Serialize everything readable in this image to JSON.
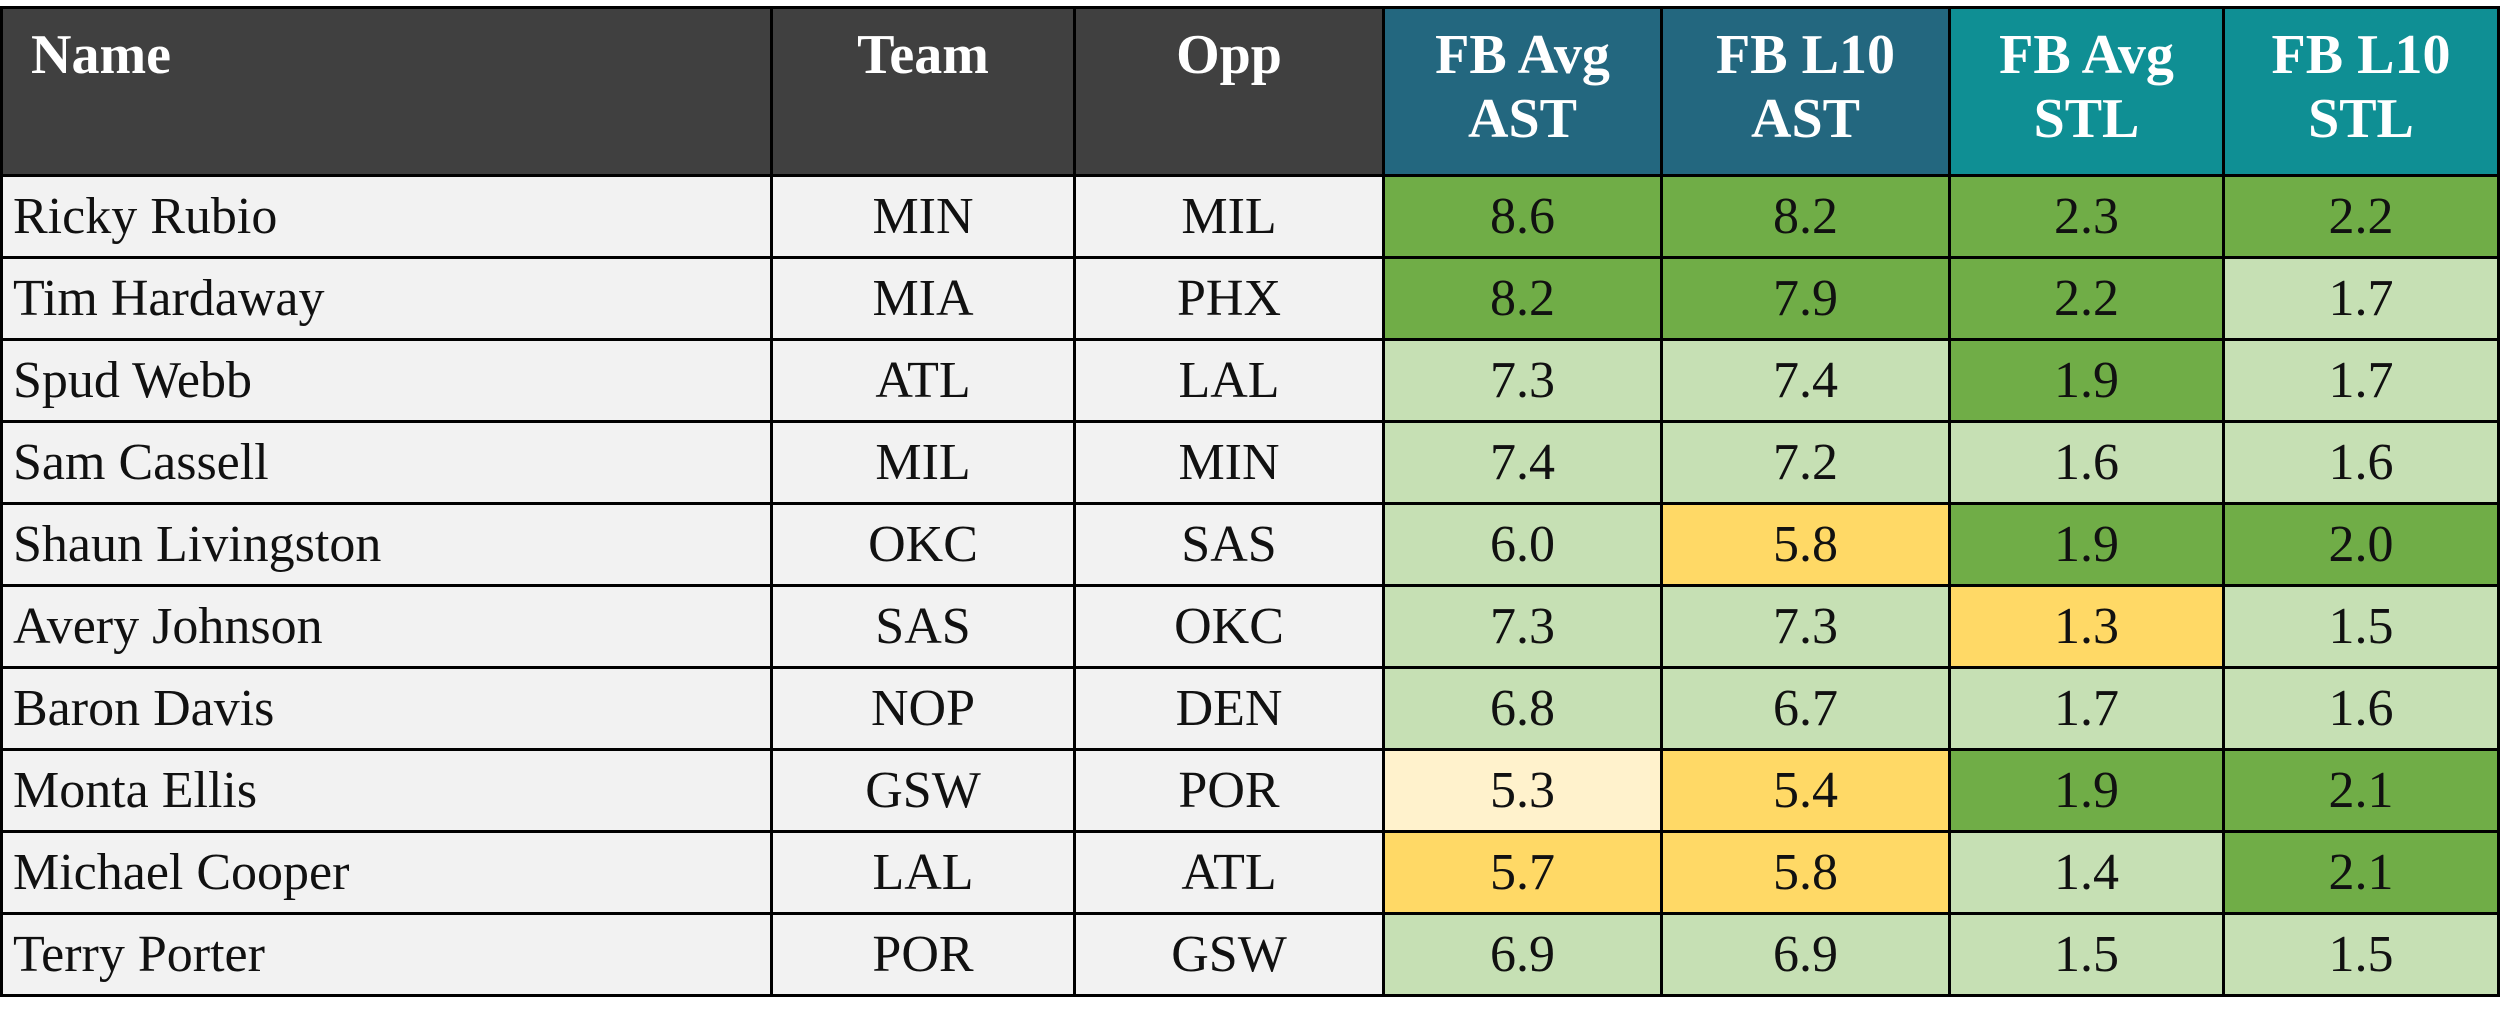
{
  "table": {
    "header": [
      "Name",
      "Team",
      "Opp",
      "FB Avg\nAST",
      "FB L10\nAST",
      "FB Avg\nSTL",
      "FB L10\nSTL"
    ],
    "header_fills": [
      "#404040",
      "#404040",
      "#404040",
      "#23677f",
      "#23677f",
      "#0f8f94",
      "#0f8f94"
    ],
    "rows": [
      [
        "Ricky Rubio",
        "MIN",
        "MIL",
        "8.6",
        "8.2",
        "2.3",
        "2.2"
      ],
      [
        "Tim Hardaway",
        "MIA",
        "PHX",
        "8.2",
        "7.9",
        "2.2",
        "1.7"
      ],
      [
        "Spud Webb",
        "ATL",
        "LAL",
        "7.3",
        "7.4",
        "1.9",
        "1.7"
      ],
      [
        "Sam Cassell",
        "MIL",
        "MIN",
        "7.4",
        "7.2",
        "1.6",
        "1.6"
      ],
      [
        "Shaun Livingston",
        "OKC",
        "SAS",
        "6.0",
        "5.8",
        "1.9",
        "2.0"
      ],
      [
        "Avery Johnson",
        "SAS",
        "OKC",
        "7.3",
        "7.3",
        "1.3",
        "1.5"
      ],
      [
        "Baron Davis",
        "NOP",
        "DEN",
        "6.8",
        "6.7",
        "1.7",
        "1.6"
      ],
      [
        "Monta Ellis",
        "GSW",
        "POR",
        "5.3",
        "5.4",
        "1.9",
        "2.1"
      ],
      [
        "Michael Cooper",
        "LAL",
        "ATL",
        "5.7",
        "5.8",
        "1.4",
        "2.1"
      ],
      [
        "Terry Porter",
        "POR",
        "GSW",
        "6.9",
        "6.9",
        "1.5",
        "1.5"
      ]
    ],
    "fills": [
      [
        "#f2f2f2",
        "#f2f2f2",
        "#f2f2f2",
        "#70ad47",
        "#70ad47",
        "#70ad47",
        "#70ad47"
      ],
      [
        "#f2f2f2",
        "#f2f2f2",
        "#f2f2f2",
        "#70ad47",
        "#70ad47",
        "#70ad47",
        "#c6e0b4"
      ],
      [
        "#f2f2f2",
        "#f2f2f2",
        "#f2f2f2",
        "#c6e0b4",
        "#c6e0b4",
        "#70ad47",
        "#c6e0b4"
      ],
      [
        "#f2f2f2",
        "#f2f2f2",
        "#f2f2f2",
        "#c6e0b4",
        "#c6e0b4",
        "#c6e0b4",
        "#c6e0b4"
      ],
      [
        "#f2f2f2",
        "#f2f2f2",
        "#f2f2f2",
        "#c6e0b4",
        "#ffd966",
        "#70ad47",
        "#70ad47"
      ],
      [
        "#f2f2f2",
        "#f2f2f2",
        "#f2f2f2",
        "#c6e0b4",
        "#c6e0b4",
        "#ffd966",
        "#c6e0b4"
      ],
      [
        "#f2f2f2",
        "#f2f2f2",
        "#f2f2f2",
        "#c6e0b4",
        "#c6e0b4",
        "#c6e0b4",
        "#c6e0b4"
      ],
      [
        "#f2f2f2",
        "#f2f2f2",
        "#f2f2f2",
        "#fff2cc",
        "#ffd966",
        "#70ad47",
        "#70ad47"
      ],
      [
        "#f2f2f2",
        "#f2f2f2",
        "#f2f2f2",
        "#ffd966",
        "#ffd966",
        "#c6e0b4",
        "#70ad47"
      ],
      [
        "#f2f2f2",
        "#f2f2f2",
        "#f2f2f2",
        "#c6e0b4",
        "#c6e0b4",
        "#c6e0b4",
        "#c6e0b4"
      ]
    ]
  }
}
